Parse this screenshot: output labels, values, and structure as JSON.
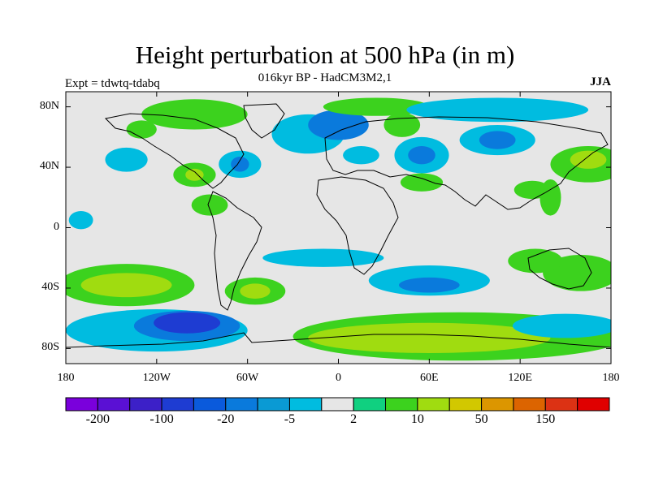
{
  "header": {
    "title": "Height perturbation at 500 hPa (in m)",
    "subtitle": "016kyr BP - HadCM3M2,1",
    "left_label": "Expt = tdwtq-tdabq",
    "right_label": "JJA"
  },
  "axes": {
    "lat_ticks": [
      {
        "label": "80N",
        "value": 80
      },
      {
        "label": "40N",
        "value": 40
      },
      {
        "label": "0",
        "value": 0
      },
      {
        "label": "40S",
        "value": -40
      },
      {
        "label": "80S",
        "value": -80
      }
    ],
    "lon_ticks": [
      {
        "label": "180",
        "value": -180
      },
      {
        "label": "120W",
        "value": -120
      },
      {
        "label": "60W",
        "value": -60
      },
      {
        "label": "0",
        "value": 0
      },
      {
        "label": "60E",
        "value": 60
      },
      {
        "label": "120E",
        "value": 120
      },
      {
        "label": "180",
        "value": 180
      }
    ],
    "lat_range": [
      -90,
      90
    ],
    "lon_range": [
      -180,
      180
    ]
  },
  "colorbar": {
    "colors": [
      "#7a00dc",
      "#5a10d4",
      "#3c20c8",
      "#1e3cd2",
      "#0a5adc",
      "#0a7adc",
      "#0a9ad4",
      "#00bce0",
      "#e6e6e6",
      "#10d080",
      "#3cd21e",
      "#a0dc10",
      "#d2c800",
      "#dc9600",
      "#dc6400",
      "#dc3214",
      "#e00000"
    ],
    "labels": [
      {
        "text": "-200",
        "boundary": 1
      },
      {
        "text": "-100",
        "boundary": 3
      },
      {
        "text": "-20",
        "boundary": 5
      },
      {
        "text": "-5",
        "boundary": 7
      },
      {
        "text": "2",
        "boundary": 9
      },
      {
        "text": "10",
        "boundary": 11
      },
      {
        "text": "50",
        "boundary": 13
      },
      {
        "text": "150",
        "boundary": 15
      }
    ]
  },
  "field_blobs": [
    {
      "lon": -170,
      "lat": 5,
      "rlon": 8,
      "rlat": 6,
      "color": "#00bce0"
    },
    {
      "lon": -130,
      "lat": 65,
      "rlon": 10,
      "rlat": 6,
      "color": "#3cd21e"
    },
    {
      "lon": -140,
      "lat": 45,
      "rlon": 14,
      "rlat": 8,
      "color": "#00bce0"
    },
    {
      "lon": -95,
      "lat": 35,
      "rlon": 14,
      "rlat": 8,
      "color": "#3cd21e"
    },
    {
      "lon": -85,
      "lat": 15,
      "rlon": 12,
      "rlat": 7,
      "color": "#3cd21e"
    },
    {
      "lon": -95,
      "lat": 35,
      "rlon": 6,
      "rlat": 4,
      "color": "#a0dc10"
    },
    {
      "lon": -65,
      "lat": 42,
      "rlon": 14,
      "rlat": 9,
      "color": "#00bce0"
    },
    {
      "lon": -65,
      "lat": 42,
      "rlon": 6,
      "rlat": 5,
      "color": "#0a7adc"
    },
    {
      "lon": -95,
      "lat": 75,
      "rlon": 35,
      "rlat": 10,
      "color": "#3cd21e"
    },
    {
      "lon": -20,
      "lat": 62,
      "rlon": 24,
      "rlat": 13,
      "color": "#00bce0"
    },
    {
      "lon": 0,
      "lat": 68,
      "rlon": 20,
      "rlat": 10,
      "color": "#0a7adc"
    },
    {
      "lon": 15,
      "lat": 48,
      "rlon": 12,
      "rlat": 6,
      "color": "#00bce0"
    },
    {
      "lon": 55,
      "lat": 48,
      "rlon": 18,
      "rlat": 12,
      "color": "#00bce0"
    },
    {
      "lon": 55,
      "lat": 48,
      "rlon": 9,
      "rlat": 6,
      "color": "#0a7adc"
    },
    {
      "lon": 42,
      "lat": 68,
      "rlon": 12,
      "rlat": 8,
      "color": "#3cd21e"
    },
    {
      "lon": 55,
      "lat": 30,
      "rlon": 14,
      "rlat": 6,
      "color": "#3cd21e"
    },
    {
      "lon": 25,
      "lat": 80,
      "rlon": 35,
      "rlat": 6,
      "color": "#3cd21e"
    },
    {
      "lon": 105,
      "lat": 78,
      "rlon": 60,
      "rlat": 8,
      "color": "#00bce0"
    },
    {
      "lon": 105,
      "lat": 58,
      "rlon": 25,
      "rlat": 10,
      "color": "#00bce0"
    },
    {
      "lon": 105,
      "lat": 58,
      "rlon": 12,
      "rlat": 6,
      "color": "#0a7adc"
    },
    {
      "lon": 165,
      "lat": 42,
      "rlon": 25,
      "rlat": 12,
      "color": "#3cd21e"
    },
    {
      "lon": 165,
      "lat": 45,
      "rlon": 12,
      "rlat": 6,
      "color": "#a0dc10"
    },
    {
      "lon": 128,
      "lat": 25,
      "rlon": 12,
      "rlat": 6,
      "color": "#3cd21e"
    },
    {
      "lon": 140,
      "lat": 20,
      "rlon": 7,
      "rlat": 12,
      "color": "#3cd21e"
    },
    {
      "lon": -140,
      "lat": -38,
      "rlon": 45,
      "rlat": 14,
      "color": "#3cd21e"
    },
    {
      "lon": -140,
      "lat": -38,
      "rlon": 30,
      "rlat": 8,
      "color": "#a0dc10"
    },
    {
      "lon": -55,
      "lat": -42,
      "rlon": 20,
      "rlat": 9,
      "color": "#3cd21e"
    },
    {
      "lon": -55,
      "lat": -42,
      "rlon": 10,
      "rlat": 5,
      "color": "#a0dc10"
    },
    {
      "lon": -10,
      "lat": -20,
      "rlon": 40,
      "rlat": 6,
      "color": "#00bce0"
    },
    {
      "lon": 60,
      "lat": -35,
      "rlon": 40,
      "rlat": 10,
      "color": "#00bce0"
    },
    {
      "lon": 60,
      "lat": -38,
      "rlon": 20,
      "rlat": 5,
      "color": "#0a7adc"
    },
    {
      "lon": 160,
      "lat": -30,
      "rlon": 25,
      "rlat": 12,
      "color": "#3cd21e"
    },
    {
      "lon": 130,
      "lat": -22,
      "rlon": 18,
      "rlat": 8,
      "color": "#3cd21e"
    },
    {
      "lon": -120,
      "lat": -68,
      "rlon": 60,
      "rlat": 14,
      "color": "#00bce0"
    },
    {
      "lon": -100,
      "lat": -65,
      "rlon": 35,
      "rlat": 10,
      "color": "#0a7adc"
    },
    {
      "lon": -100,
      "lat": -63,
      "rlon": 22,
      "rlat": 7,
      "color": "#1e3cd2"
    },
    {
      "lon": 80,
      "lat": -72,
      "rlon": 110,
      "rlat": 16,
      "color": "#3cd21e"
    },
    {
      "lon": 60,
      "lat": -73,
      "rlon": 80,
      "rlat": 10,
      "color": "#a0dc10"
    },
    {
      "lon": 150,
      "lat": -65,
      "rlon": 35,
      "rlat": 8,
      "color": "#00bce0"
    }
  ]
}
